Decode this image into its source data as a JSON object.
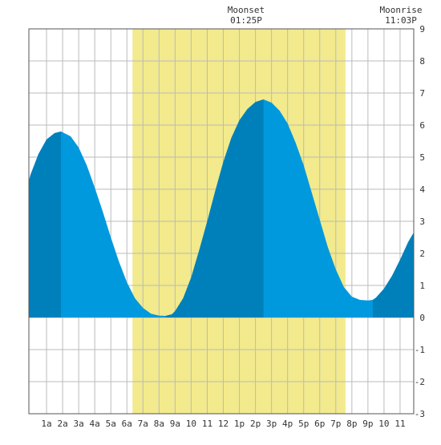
{
  "chart_data": {
    "type": "area",
    "title": "",
    "xlabel": "",
    "ylabel": "",
    "x_unit": "hour of day",
    "xlim": [
      -0.1,
      23.85
    ],
    "ylim": [
      -3,
      9
    ],
    "grid": true,
    "x_ticks": [
      {
        "x": 1,
        "label": "1a"
      },
      {
        "x": 2,
        "label": "2a"
      },
      {
        "x": 3,
        "label": "3a"
      },
      {
        "x": 4,
        "label": "4a"
      },
      {
        "x": 5,
        "label": "5a"
      },
      {
        "x": 6,
        "label": "6a"
      },
      {
        "x": 7,
        "label": "7a"
      },
      {
        "x": 8,
        "label": "8a"
      },
      {
        "x": 9,
        "label": "9a"
      },
      {
        "x": 10,
        "label": "10"
      },
      {
        "x": 11,
        "label": "11"
      },
      {
        "x": 12,
        "label": "12"
      },
      {
        "x": 13,
        "label": "1p"
      },
      {
        "x": 14,
        "label": "2p"
      },
      {
        "x": 15,
        "label": "3p"
      },
      {
        "x": 16,
        "label": "4p"
      },
      {
        "x": 17,
        "label": "5p"
      },
      {
        "x": 18,
        "label": "6p"
      },
      {
        "x": 19,
        "label": "7p"
      },
      {
        "x": 20,
        "label": "8p"
      },
      {
        "x": 21,
        "label": "9p"
      },
      {
        "x": 22,
        "label": "10"
      },
      {
        "x": 23,
        "label": "11"
      }
    ],
    "y_ticks": [
      9,
      8,
      7,
      6,
      5,
      4,
      3,
      2,
      1,
      0,
      -1,
      -2,
      -3
    ],
    "extremes": [
      {
        "type": "high",
        "x": 1.9,
        "y": 5.8
      },
      {
        "type": "low",
        "x": 8.4,
        "y": 0.05
      },
      {
        "type": "high",
        "x": 14.5,
        "y": 6.8
      },
      {
        "type": "low",
        "x": 21.3,
        "y": 0.55
      }
    ],
    "series": [
      {
        "points": [
          [
            -0.1,
            4.25
          ],
          [
            0.0,
            4.45
          ],
          [
            0.5,
            5.1
          ],
          [
            1.0,
            5.55
          ],
          [
            1.5,
            5.75
          ],
          [
            1.9,
            5.8
          ],
          [
            2.5,
            5.65
          ],
          [
            3.0,
            5.3
          ],
          [
            3.5,
            4.75
          ],
          [
            4.0,
            4.05
          ],
          [
            4.5,
            3.3
          ],
          [
            5.0,
            2.5
          ],
          [
            5.5,
            1.75
          ],
          [
            6.0,
            1.1
          ],
          [
            6.5,
            0.6
          ],
          [
            7.0,
            0.3
          ],
          [
            7.5,
            0.12
          ],
          [
            8.0,
            0.06
          ],
          [
            8.4,
            0.05
          ],
          [
            8.8,
            0.1
          ],
          [
            9.0,
            0.2
          ],
          [
            9.5,
            0.6
          ],
          [
            10.0,
            1.25
          ],
          [
            10.5,
            2.1
          ],
          [
            11.0,
            3.0
          ],
          [
            11.5,
            3.95
          ],
          [
            12.0,
            4.85
          ],
          [
            12.5,
            5.6
          ],
          [
            13.0,
            6.15
          ],
          [
            13.5,
            6.5
          ],
          [
            14.0,
            6.72
          ],
          [
            14.5,
            6.8
          ],
          [
            15.0,
            6.7
          ],
          [
            15.5,
            6.45
          ],
          [
            16.0,
            6.05
          ],
          [
            16.5,
            5.45
          ],
          [
            17.0,
            4.75
          ],
          [
            17.5,
            3.9
          ],
          [
            18.0,
            3.05
          ],
          [
            18.5,
            2.2
          ],
          [
            19.0,
            1.5
          ],
          [
            19.5,
            0.95
          ],
          [
            20.0,
            0.65
          ],
          [
            20.5,
            0.55
          ],
          [
            21.0,
            0.53
          ],
          [
            21.3,
            0.55
          ],
          [
            21.5,
            0.62
          ],
          [
            22.0,
            0.9
          ],
          [
            22.5,
            1.3
          ],
          [
            23.0,
            1.8
          ],
          [
            23.5,
            2.35
          ],
          [
            23.85,
            2.65
          ]
        ],
        "color": "#0099dd",
        "dark_color": "#0080bb",
        "dark_ranges": [
          [
            -0.1,
            1.9
          ],
          [
            8.4,
            14.5
          ],
          [
            21.3,
            23.85
          ]
        ]
      }
    ],
    "daylight": {
      "start": 6.35,
      "end": 19.6,
      "color": "#f2ea8c"
    },
    "annotations": [
      {
        "label": "Moonset",
        "time": "01:25P",
        "x": 13.42
      },
      {
        "label": "Moonrise",
        "time": "11:03P",
        "x": 23.05
      }
    ],
    "grid_color": "#bbbbbb",
    "axis_color": "#555555"
  }
}
